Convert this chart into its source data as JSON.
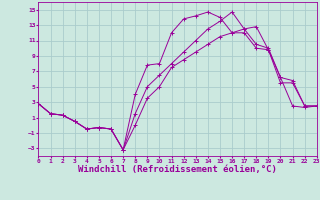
{
  "background_color": "#cce8e0",
  "grid_color": "#aacccc",
  "line_color": "#990099",
  "xlabel": "Windchill (Refroidissement éolien,°C)",
  "xlabel_fontsize": 6.5,
  "yticks": [
    -3,
    -1,
    1,
    3,
    5,
    7,
    9,
    11,
    13,
    15
  ],
  "xticks": [
    0,
    1,
    2,
    3,
    4,
    5,
    6,
    7,
    8,
    9,
    10,
    11,
    12,
    13,
    14,
    15,
    16,
    17,
    18,
    19,
    20,
    21,
    22,
    23
  ],
  "xlim": [
    0,
    23
  ],
  "ylim": [
    -4,
    16
  ],
  "line1_x": [
    0,
    1,
    2,
    3,
    4,
    5,
    6,
    7,
    8,
    9,
    10,
    11,
    12,
    13,
    14,
    15,
    16,
    17,
    18,
    19,
    20,
    21,
    22,
    23
  ],
  "line1_y": [
    2.8,
    1.5,
    1.3,
    0.5,
    -0.5,
    -0.3,
    -0.5,
    -3.2,
    4.0,
    7.8,
    8.0,
    12.0,
    13.8,
    14.2,
    14.7,
    14.0,
    12.0,
    12.0,
    10.0,
    9.8,
    6.2,
    5.8,
    2.5,
    2.5
  ],
  "line2_x": [
    0,
    1,
    2,
    3,
    4,
    5,
    6,
    7,
    8,
    9,
    10,
    11,
    12,
    13,
    14,
    15,
    16,
    17,
    18,
    19,
    20,
    21,
    22,
    23
  ],
  "line2_y": [
    2.8,
    1.5,
    1.3,
    0.5,
    -0.5,
    -0.3,
    -0.5,
    -3.2,
    0.0,
    3.5,
    5.0,
    7.5,
    8.5,
    9.5,
    10.5,
    11.5,
    12.0,
    12.5,
    12.8,
    9.8,
    5.5,
    5.5,
    2.5,
    2.5
  ],
  "line3_x": [
    0,
    1,
    2,
    3,
    4,
    5,
    6,
    7,
    8,
    9,
    10,
    11,
    12,
    13,
    14,
    15,
    16,
    17,
    18,
    19,
    20,
    21,
    22,
    23
  ],
  "line3_y": [
    2.8,
    1.5,
    1.3,
    0.5,
    -0.5,
    -0.3,
    -0.5,
    -3.2,
    1.5,
    5.0,
    6.5,
    8.0,
    9.5,
    11.0,
    12.5,
    13.5,
    14.7,
    12.5,
    10.5,
    10.0,
    6.2,
    2.5,
    2.3,
    2.5
  ]
}
